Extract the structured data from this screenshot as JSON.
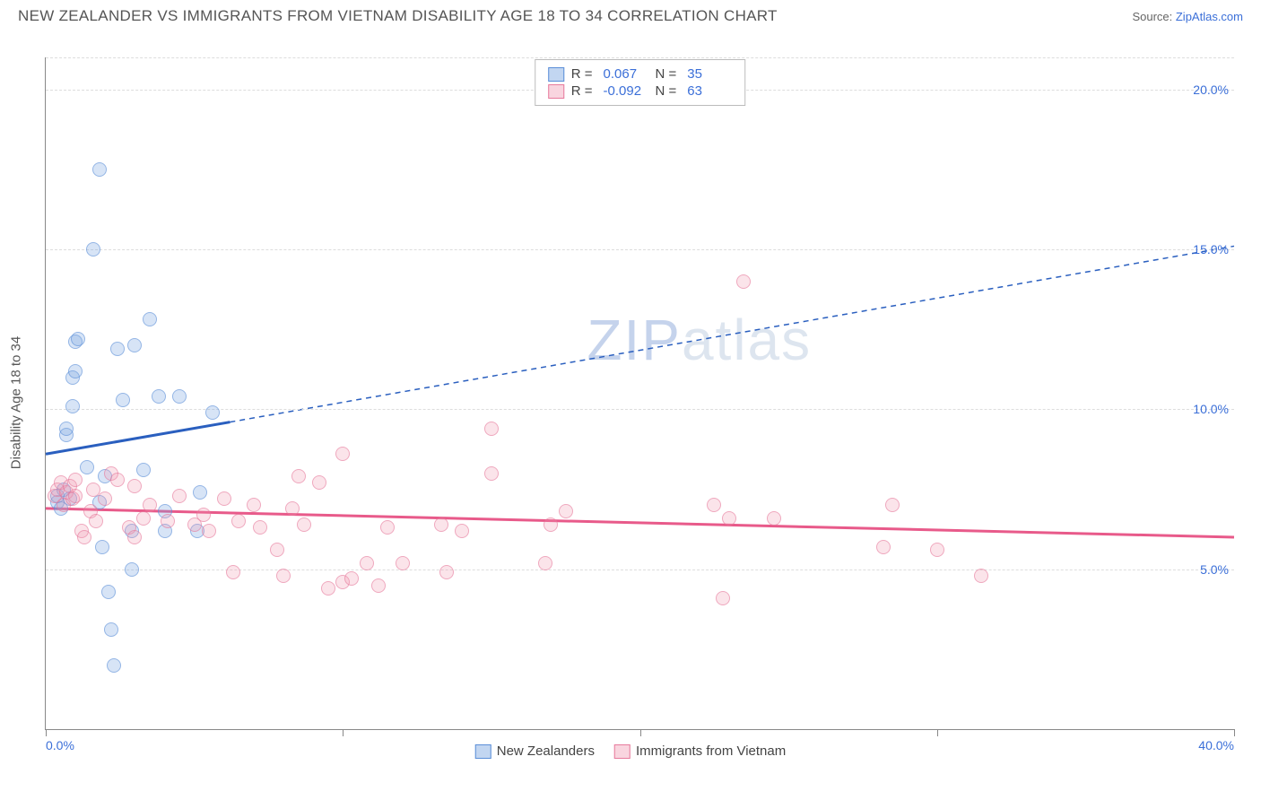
{
  "title": "NEW ZEALANDER VS IMMIGRANTS FROM VIETNAM DISABILITY AGE 18 TO 34 CORRELATION CHART",
  "source_prefix": "Source: ",
  "source_name": "ZipAtlas.com",
  "watermark_a": "ZIP",
  "watermark_b": "atlas",
  "chart": {
    "type": "scatter",
    "ylabel": "Disability Age 18 to 34",
    "xlim": [
      0,
      40
    ],
    "ylim": [
      0,
      21
    ],
    "ytick_pct": [
      5,
      10,
      15,
      20
    ],
    "ytick_labels": [
      "5.0%",
      "10.0%",
      "15.0%",
      "20.0%"
    ],
    "xtick_pct": [
      0,
      10,
      20,
      30,
      40
    ],
    "xtick_labels": [
      "0.0%",
      "",
      "",
      "",
      "40.0%"
    ],
    "background_color": "#ffffff",
    "grid_color": "#dddddd",
    "colors": {
      "blue_fill": "rgba(120,165,225,0.45)",
      "blue_stroke": "#5a8ed8",
      "blue_line": "#2a5fbf",
      "pink_fill": "rgba(240,150,175,0.40)",
      "pink_stroke": "#e77a9c",
      "pink_line": "#e85a8a"
    },
    "series": [
      {
        "name": "New Zealanders",
        "key": "blue",
        "R": "0.067",
        "N": "35",
        "trend": {
          "x1": 0,
          "y1": 8.6,
          "solid_x2": 6.2,
          "solid_y2": 9.6,
          "x2": 40,
          "y2": 15.1
        },
        "points": [
          [
            0.4,
            7.1
          ],
          [
            0.4,
            7.3
          ],
          [
            0.5,
            6.9
          ],
          [
            0.6,
            7.5
          ],
          [
            0.7,
            9.2
          ],
          [
            0.7,
            9.4
          ],
          [
            0.8,
            7.2
          ],
          [
            0.9,
            10.1
          ],
          [
            0.9,
            11.0
          ],
          [
            1.0,
            11.2
          ],
          [
            1.0,
            12.1
          ],
          [
            1.1,
            12.2
          ],
          [
            1.4,
            8.2
          ],
          [
            1.6,
            15.0
          ],
          [
            1.8,
            17.5
          ],
          [
            1.9,
            5.7
          ],
          [
            2.0,
            7.9
          ],
          [
            2.1,
            4.3
          ],
          [
            2.2,
            3.1
          ],
          [
            2.3,
            2.0
          ],
          [
            2.4,
            11.9
          ],
          [
            2.6,
            10.3
          ],
          [
            2.9,
            5.0
          ],
          [
            2.9,
            6.2
          ],
          [
            3.0,
            12.0
          ],
          [
            3.3,
            8.1
          ],
          [
            3.5,
            12.8
          ],
          [
            3.8,
            10.4
          ],
          [
            4.0,
            6.8
          ],
          [
            4.0,
            6.2
          ],
          [
            4.5,
            10.4
          ],
          [
            5.1,
            6.2
          ],
          [
            5.6,
            9.9
          ],
          [
            5.2,
            7.4
          ],
          [
            1.8,
            7.1
          ]
        ]
      },
      {
        "name": "Immigrants from Vietnam",
        "key": "pink",
        "R": "-0.092",
        "N": "63",
        "trend": {
          "x1": 0,
          "y1": 6.9,
          "solid_x2": 40,
          "solid_y2": 6.0,
          "x2": 40,
          "y2": 6.0
        },
        "points": [
          [
            0.3,
            7.3
          ],
          [
            0.4,
            7.5
          ],
          [
            0.5,
            7.7
          ],
          [
            0.6,
            7.0
          ],
          [
            0.7,
            7.4
          ],
          [
            0.8,
            7.6
          ],
          [
            0.9,
            7.2
          ],
          [
            1.0,
            7.3
          ],
          [
            1.0,
            7.8
          ],
          [
            1.2,
            6.2
          ],
          [
            1.3,
            6.0
          ],
          [
            1.5,
            6.8
          ],
          [
            1.6,
            7.5
          ],
          [
            1.7,
            6.5
          ],
          [
            2.0,
            7.2
          ],
          [
            2.2,
            8.0
          ],
          [
            2.4,
            7.8
          ],
          [
            2.8,
            6.3
          ],
          [
            3.0,
            7.6
          ],
          [
            3.0,
            6.0
          ],
          [
            3.3,
            6.6
          ],
          [
            3.5,
            7.0
          ],
          [
            4.1,
            6.5
          ],
          [
            4.5,
            7.3
          ],
          [
            5.0,
            6.4
          ],
          [
            5.3,
            6.7
          ],
          [
            5.5,
            6.2
          ],
          [
            6.0,
            7.2
          ],
          [
            6.3,
            4.9
          ],
          [
            6.5,
            6.5
          ],
          [
            7.0,
            7.0
          ],
          [
            7.2,
            6.3
          ],
          [
            7.8,
            5.6
          ],
          [
            8.0,
            4.8
          ],
          [
            8.3,
            6.9
          ],
          [
            8.5,
            7.9
          ],
          [
            8.7,
            6.4
          ],
          [
            9.2,
            7.7
          ],
          [
            9.5,
            4.4
          ],
          [
            10.0,
            8.6
          ],
          [
            10.0,
            4.6
          ],
          [
            10.3,
            4.7
          ],
          [
            10.8,
            5.2
          ],
          [
            11.2,
            4.5
          ],
          [
            11.5,
            6.3
          ],
          [
            12.0,
            5.2
          ],
          [
            13.3,
            6.4
          ],
          [
            13.5,
            4.9
          ],
          [
            14.0,
            6.2
          ],
          [
            15.0,
            8.0
          ],
          [
            15.0,
            9.4
          ],
          [
            16.8,
            5.2
          ],
          [
            17.0,
            6.4
          ],
          [
            17.5,
            6.8
          ],
          [
            22.5,
            7.0
          ],
          [
            22.8,
            4.1
          ],
          [
            23.0,
            6.6
          ],
          [
            23.5,
            14.0
          ],
          [
            24.5,
            6.6
          ],
          [
            28.2,
            5.7
          ],
          [
            28.5,
            7.0
          ],
          [
            30.0,
            5.6
          ],
          [
            31.5,
            4.8
          ]
        ]
      }
    ],
    "legend_top": [
      {
        "key": "blue",
        "R_label": "R =",
        "N_label": "N ="
      },
      {
        "key": "pink",
        "R_label": "R =",
        "N_label": "N ="
      }
    ],
    "legend_bottom": [
      {
        "key": "blue",
        "label": "New Zealanders"
      },
      {
        "key": "pink",
        "label": "Immigrants from Vietnam"
      }
    ]
  }
}
